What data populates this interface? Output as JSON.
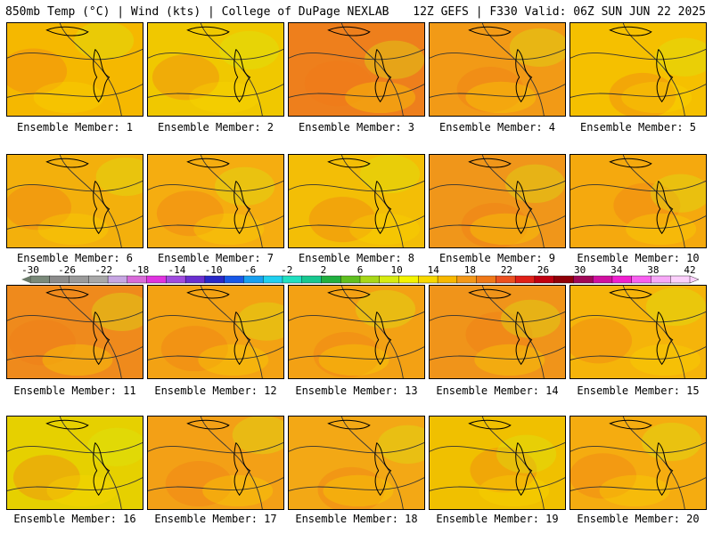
{
  "header": {
    "left": "850mb Temp (°C) | Wind (kts) | College of DuPage NEXLAB",
    "right": "12Z GEFS | F330 Valid: 06Z SUN JUN 22 2025"
  },
  "members": [
    {
      "label": "Ensemble Member: 1",
      "tint": "#f5b800"
    },
    {
      "label": "Ensemble Member: 2",
      "tint": "#f0c800"
    },
    {
      "label": "Ensemble Member: 3",
      "tint": "#ee7f1c"
    },
    {
      "label": "Ensemble Member: 4",
      "tint": "#f29a16"
    },
    {
      "label": "Ensemble Member: 5",
      "tint": "#f5c000"
    },
    {
      "label": "Ensemble Member: 6",
      "tint": "#f3b00c"
    },
    {
      "label": "Ensemble Member: 7",
      "tint": "#f5ad10"
    },
    {
      "label": "Ensemble Member: 8",
      "tint": "#f3be06"
    },
    {
      "label": "Ensemble Member: 9",
      "tint": "#f0961a"
    },
    {
      "label": "Ensemble Member: 10",
      "tint": "#f5a90e"
    },
    {
      "label": "Ensemble Member: 11",
      "tint": "#ef8a1c"
    },
    {
      "label": "Ensemble Member: 12",
      "tint": "#f3a213"
    },
    {
      "label": "Ensemble Member: 13",
      "tint": "#f3a114"
    },
    {
      "label": "Ensemble Member: 14",
      "tint": "#f0941a"
    },
    {
      "label": "Ensemble Member: 15",
      "tint": "#f5b40a"
    },
    {
      "label": "Ensemble Member: 16",
      "tint": "#e6d000"
    },
    {
      "label": "Ensemble Member: 17",
      "tint": "#f3a016"
    },
    {
      "label": "Ensemble Member: 18",
      "tint": "#f3a815"
    },
    {
      "label": "Ensemble Member: 19",
      "tint": "#f0c000"
    },
    {
      "label": "Ensemble Member: 20",
      "tint": "#f5ac10"
    }
  ],
  "colorbar": {
    "ticks": [
      "-30",
      "-26",
      "-22",
      "-18",
      "-14",
      "-10",
      "-6",
      "-2",
      "2",
      "6",
      "10",
      "14",
      "18",
      "22",
      "26",
      "30",
      "34",
      "38",
      "42"
    ],
    "colors": [
      "#7a8a7a",
      "#8c8c8c",
      "#9a9a9a",
      "#a8a8a8",
      "#c7a6e3",
      "#d96bd9",
      "#e033e0",
      "#a04be0",
      "#6a2fd0",
      "#2828c8",
      "#1858e8",
      "#18a0f0",
      "#20d0f0",
      "#20e0c0",
      "#18c890",
      "#20b040",
      "#60c020",
      "#a8d818",
      "#d8ec10",
      "#f4f400",
      "#f8d800",
      "#f8b800",
      "#f49818",
      "#f07818",
      "#ec5020",
      "#e02018",
      "#c00010",
      "#900008",
      "#a00858",
      "#d010a0",
      "#f020d0",
      "#f860f0",
      "#f8a8f8",
      "#fcd0fc"
    ]
  }
}
